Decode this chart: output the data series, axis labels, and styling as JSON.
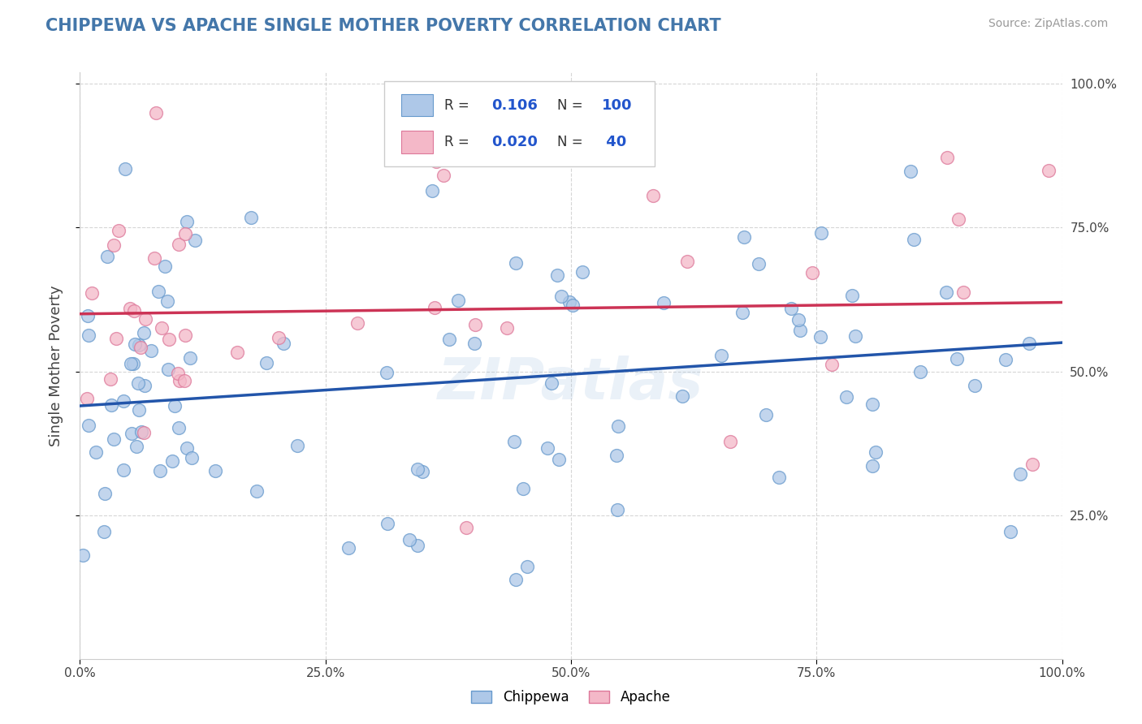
{
  "title": "CHIPPEWA VS APACHE SINGLE MOTHER POVERTY CORRELATION CHART",
  "source": "Source: ZipAtlas.com",
  "ylabel": "Single Mother Poverty",
  "watermark": "ZIPatlas",
  "chippewa": {
    "R": 0.106,
    "N": 100,
    "color": "#aec8e8",
    "edge_color": "#6699cc",
    "line_color": "#2255aa",
    "label": "Chippewa"
  },
  "apache": {
    "R": 0.02,
    "N": 40,
    "color": "#f4b8c8",
    "edge_color": "#dd7799",
    "line_color": "#cc3355",
    "label": "Apache"
  },
  "xlim": [
    0,
    1
  ],
  "ylim": [
    0,
    1.02
  ],
  "background_color": "#ffffff",
  "grid_color": "#cccccc",
  "title_color": "#4477aa",
  "R_N_color": "#2255cc",
  "chippewa_trend": [
    0.44,
    0.55
  ],
  "apache_trend": [
    0.6,
    0.62
  ]
}
